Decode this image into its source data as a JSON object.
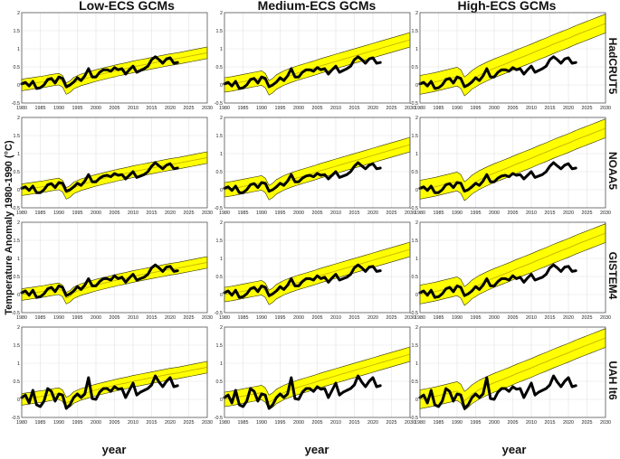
{
  "ylabel": "Temperature Anomaly 1980-1990 (°C)",
  "xlabel": "year",
  "columns": [
    {
      "title": "Low-ECS GCMs"
    },
    {
      "title": "Medium-ECS GCMs"
    },
    {
      "title": "High-ECS GCMs"
    }
  ],
  "rows": [
    {
      "label": "HadCRUT5"
    },
    {
      "label": "NOAA5"
    },
    {
      "label": "GISTEM4"
    },
    {
      "label": "UAH lt6"
    }
  ],
  "colors": {
    "band": "#ffff00",
    "band_edge": "#333300",
    "mean": "#c8b400",
    "obs": "#000000"
  },
  "chart_data": {
    "type": "line",
    "layout": "4x3 small multiples",
    "xlim": [
      1980,
      2030
    ],
    "ylim": [
      -0.5,
      2
    ],
    "xticks": [
      1980,
      1985,
      1990,
      1995,
      2000,
      2005,
      2010,
      2015,
      2020,
      2025,
      2030
    ],
    "yticks": [
      -0.5,
      0,
      0.5,
      1,
      1.5,
      2
    ],
    "ytick_labels": [
      "-0.5",
      "0",
      "0.5",
      "1",
      "1.5",
      "2"
    ],
    "grid": true,
    "model_bands": {
      "x": [
        1980,
        1982,
        1984,
        1986,
        1988,
        1990,
        1991,
        1992,
        1993,
        1994,
        1996,
        1998,
        2000,
        2002,
        2004,
        2006,
        2008,
        2010,
        2012,
        2014,
        2016,
        2018,
        2020,
        2022,
        2024,
        2026,
        2028,
        2030
      ],
      "low_ecs": {
        "mean": [
          0.0,
          0.03,
          0.06,
          0.09,
          0.13,
          0.16,
          0.1,
          -0.1,
          -0.05,
          0.05,
          0.14,
          0.2,
          0.26,
          0.31,
          0.36,
          0.41,
          0.45,
          0.5,
          0.54,
          0.58,
          0.62,
          0.66,
          0.7,
          0.73,
          0.77,
          0.81,
          0.85,
          0.89
        ],
        "half_width": 0.16
      },
      "medium_ecs": {
        "mean": [
          0.0,
          0.03,
          0.07,
          0.11,
          0.15,
          0.19,
          0.12,
          -0.08,
          -0.02,
          0.08,
          0.19,
          0.27,
          0.34,
          0.4,
          0.46,
          0.53,
          0.59,
          0.65,
          0.71,
          0.77,
          0.83,
          0.89,
          0.95,
          1.01,
          1.07,
          1.13,
          1.19,
          1.25
        ],
        "half_width": 0.2
      },
      "high_ecs": {
        "mean": [
          0.0,
          0.04,
          0.08,
          0.13,
          0.18,
          0.23,
          0.16,
          -0.04,
          0.04,
          0.14,
          0.27,
          0.37,
          0.46,
          0.54,
          0.62,
          0.71,
          0.79,
          0.87,
          0.96,
          1.04,
          1.13,
          1.21,
          1.29,
          1.38,
          1.46,
          1.54,
          1.62,
          1.7
        ],
        "half_width": 0.26
      }
    },
    "observations": {
      "x": [
        1980,
        1981,
        1982,
        1983,
        1984,
        1985,
        1986,
        1987,
        1988,
        1989,
        1990,
        1991,
        1992,
        1993,
        1994,
        1995,
        1996,
        1997,
        1998,
        1999,
        2000,
        2001,
        2002,
        2003,
        2004,
        2005,
        2006,
        2007,
        2008,
        2009,
        2010,
        2011,
        2012,
        2013,
        2014,
        2015,
        2016,
        2017,
        2018,
        2019,
        2020,
        2021,
        2022
      ],
      "HadCRUT5": [
        0.03,
        0.07,
        -0.03,
        0.1,
        -0.1,
        -0.08,
        0.0,
        0.15,
        0.18,
        0.05,
        0.22,
        0.18,
        -0.05,
        0.0,
        0.08,
        0.2,
        0.12,
        0.25,
        0.45,
        0.22,
        0.22,
        0.35,
        0.42,
        0.42,
        0.38,
        0.48,
        0.42,
        0.45,
        0.3,
        0.42,
        0.52,
        0.35,
        0.4,
        0.45,
        0.52,
        0.7,
        0.78,
        0.7,
        0.6,
        0.72,
        0.75,
        0.6,
        0.62
      ],
      "NOAA5": [
        0.04,
        0.08,
        -0.02,
        0.1,
        -0.08,
        -0.08,
        0.0,
        0.14,
        0.17,
        0.06,
        0.2,
        0.18,
        -0.04,
        0.0,
        0.08,
        0.18,
        0.12,
        0.24,
        0.42,
        0.22,
        0.22,
        0.32,
        0.38,
        0.4,
        0.36,
        0.45,
        0.4,
        0.42,
        0.3,
        0.4,
        0.5,
        0.34,
        0.38,
        0.42,
        0.5,
        0.65,
        0.75,
        0.66,
        0.58,
        0.68,
        0.72,
        0.58,
        0.6
      ],
      "GISTEM4": [
        0.05,
        0.1,
        -0.02,
        0.12,
        -0.08,
        -0.06,
        0.02,
        0.16,
        0.2,
        0.08,
        0.24,
        0.2,
        -0.03,
        0.02,
        0.1,
        0.22,
        0.14,
        0.26,
        0.44,
        0.24,
        0.24,
        0.36,
        0.44,
        0.44,
        0.4,
        0.52,
        0.44,
        0.48,
        0.34,
        0.46,
        0.56,
        0.4,
        0.44,
        0.48,
        0.56,
        0.74,
        0.82,
        0.74,
        0.64,
        0.76,
        0.78,
        0.64,
        0.66
      ],
      "UAH lt6": [
        0.05,
        0.12,
        -0.1,
        0.25,
        -0.15,
        -0.2,
        -0.05,
        0.3,
        0.22,
        -0.05,
        0.15,
        0.12,
        -0.25,
        -0.15,
        0.05,
        0.15,
        0.05,
        0.15,
        0.6,
        0.02,
        0.0,
        0.2,
        0.3,
        0.3,
        0.22,
        0.35,
        0.28,
        0.3,
        0.05,
        0.25,
        0.45,
        0.12,
        0.2,
        0.25,
        0.3,
        0.4,
        0.65,
        0.48,
        0.35,
        0.5,
        0.6,
        0.35,
        0.38
      ]
    }
  }
}
